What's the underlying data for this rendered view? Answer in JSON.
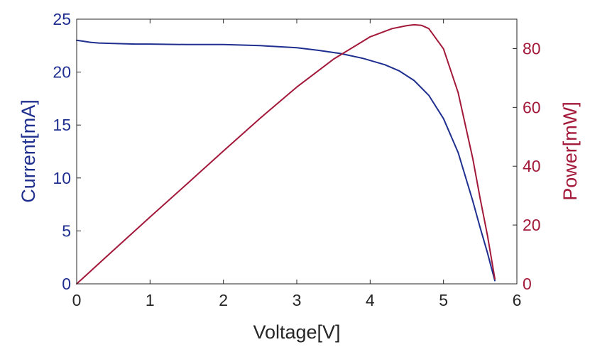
{
  "chart_data": {
    "type": "line",
    "title": "",
    "xlabel": "Voltage[V]",
    "ylabel_left": "Current[mA]",
    "ylabel_right": "Power[mW]",
    "xlim": [
      0,
      6
    ],
    "ylim_left": [
      0,
      25
    ],
    "ylim_right": [
      0,
      90
    ],
    "xticks": [
      "0",
      "1",
      "2",
      "3",
      "4",
      "5",
      "6"
    ],
    "yticks_left": [
      "0",
      "5",
      "10",
      "15",
      "20",
      "25"
    ],
    "yticks_right": [
      "0",
      "20",
      "40",
      "60",
      "80"
    ],
    "grid": false,
    "colors": {
      "current": "#1f2f8f",
      "power": "#a3193a",
      "axis": "#262626"
    },
    "series": [
      {
        "axis": "left",
        "x": [
          0,
          0.1,
          0.2,
          0.3,
          0.5,
          0.8,
          1.0,
          1.5,
          2.0,
          2.5,
          3.0,
          3.3,
          3.6,
          3.9,
          4.2,
          4.4,
          4.6,
          4.8,
          5.0,
          5.2,
          5.4,
          5.5,
          5.6,
          5.65,
          5.7
        ],
        "y": [
          23.0,
          22.9,
          22.8,
          22.75,
          22.7,
          22.65,
          22.65,
          22.6,
          22.6,
          22.5,
          22.3,
          22.05,
          21.75,
          21.3,
          20.7,
          20.1,
          19.2,
          17.8,
          15.6,
          12.4,
          7.8,
          5.3,
          2.9,
          1.6,
          0.3
        ]
      },
      {
        "axis": "right",
        "x": [
          0,
          0.5,
          1.0,
          1.5,
          2.0,
          2.5,
          3.0,
          3.5,
          4.0,
          4.3,
          4.5,
          4.6,
          4.7,
          4.8,
          5.0,
          5.2,
          5.4,
          5.5,
          5.6,
          5.7
        ],
        "y": [
          0,
          11.4,
          22.7,
          33.9,
          45.2,
          56.3,
          66.9,
          76.4,
          84.0,
          86.8,
          87.8,
          88.1,
          87.9,
          86.8,
          79.9,
          65.0,
          42.5,
          29.0,
          16.3,
          1.7
        ]
      }
    ]
  }
}
